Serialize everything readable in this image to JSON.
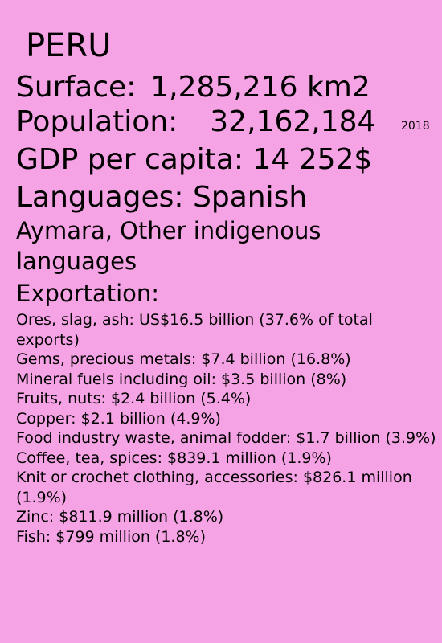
{
  "country": "PERU",
  "surface": {
    "label": "Surface:",
    "value": "1,285,216 km2"
  },
  "population": {
    "label": "Population:",
    "value": "32,162,184",
    "year": "2018"
  },
  "gdp": {
    "text": "GDP per capita: 14 252$"
  },
  "languages": {
    "text": "Languages: Spanish",
    "extra": "Aymara, Other indigenous languages"
  },
  "exportation": {
    "heading": "Exportation:",
    "items": [
      "Ores, slag, ash: US$16.5 billion (37.6% of total exports)",
      "Gems, precious metals: $7.4 billion (16.8%)",
      "Mineral fuels including oil: $3.5 billion (8%)",
      "Fruits, nuts: $2.4 billion (5.4%)",
      "Copper: $2.1 billion (4.9%)",
      "Food industry waste, animal fodder: $1.7 billion (3.9%)",
      "Coffee, tea, spices: $839.1 million (1.9%)",
      "Knit or crochet clothing, accessories: $826.1 million (1.9%)",
      "Zinc: $811.9 million (1.8%)",
      "Fish: $799 million (1.8%)"
    ]
  },
  "colors": {
    "background": "#f6a3e6",
    "text": "#000000"
  }
}
